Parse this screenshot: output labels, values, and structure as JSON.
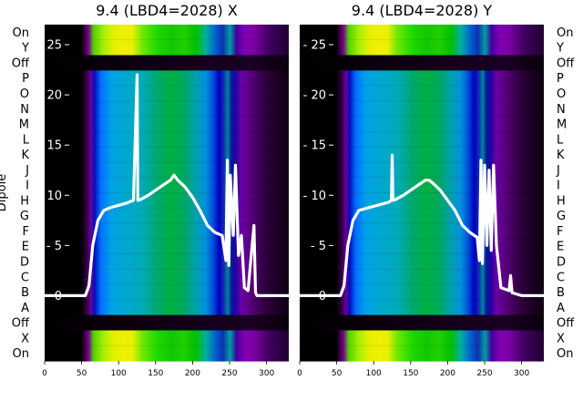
{
  "chart_data": [
    {
      "type": "heatmap",
      "title": "9.4 (LBD4=2028) X",
      "ylabel": "Dipole",
      "colormap": "nipy_spectral",
      "row_labels": [
        "On",
        "Y",
        "Off",
        "P",
        "O",
        "N",
        "M",
        "L",
        "K",
        "J",
        "I",
        "H",
        "G",
        "F",
        "E",
        "D",
        "C",
        "B",
        "A",
        "Off",
        "X",
        "On"
      ],
      "xlim": [
        0,
        330
      ],
      "x_ticks": [
        0,
        50,
        100,
        150,
        200,
        250,
        300
      ],
      "overlay_ylim": [
        -6.5,
        27
      ],
      "overlay_ticks": [
        0,
        5,
        10,
        15,
        20,
        25
      ],
      "overlay_line": {
        "color": "#ffffff",
        "x": [
          0,
          55,
          60,
          65,
          72,
          80,
          90,
          100,
          110,
          120,
          125,
          126,
          127,
          130,
          140,
          150,
          160,
          170,
          175,
          180,
          190,
          200,
          210,
          220,
          230,
          240,
          245,
          247,
          249,
          251,
          255,
          258,
          262,
          266,
          270,
          275,
          283,
          285,
          287,
          300,
          330
        ],
        "y": [
          0,
          0,
          1,
          5,
          7.5,
          8.5,
          8.8,
          9,
          9.2,
          9.5,
          22,
          9.5,
          9.5,
          9.6,
          10,
          10.5,
          11,
          11.5,
          12,
          11.5,
          10.8,
          9.8,
          8.5,
          7,
          6.3,
          6,
          3.5,
          13.5,
          3,
          12,
          6,
          13,
          4,
          6,
          0.8,
          0.5,
          7,
          0.3,
          0,
          0,
          0
        ]
      }
    },
    {
      "type": "heatmap",
      "title": "9.4 (LBD4=2028) Y",
      "colormap": "nipy_spectral",
      "row_labels": [
        "On",
        "Y",
        "Off",
        "P",
        "O",
        "N",
        "M",
        "L",
        "K",
        "J",
        "I",
        "H",
        "G",
        "F",
        "E",
        "D",
        "C",
        "B",
        "A",
        "Off",
        "X",
        "On"
      ],
      "xlim": [
        0,
        330
      ],
      "x_ticks": [
        0,
        50,
        100,
        150,
        200,
        250,
        300
      ],
      "overlay_ylim": [
        -6.5,
        27
      ],
      "overlay_ticks": [
        0,
        5,
        10,
        15,
        20,
        25
      ],
      "overlay_line": {
        "color": "#ffffff",
        "x": [
          0,
          55,
          60,
          65,
          72,
          80,
          90,
          100,
          110,
          120,
          124,
          125,
          126,
          130,
          140,
          150,
          160,
          170,
          175,
          180,
          190,
          200,
          210,
          220,
          230,
          240,
          243,
          245,
          247,
          250,
          253,
          256,
          259,
          262,
          266,
          272,
          283,
          285,
          287,
          300,
          330
        ],
        "y": [
          0,
          0,
          1,
          5,
          7.5,
          8.5,
          8.7,
          8.9,
          9.1,
          9.3,
          9.5,
          14,
          9.5,
          9.6,
          10,
          10.5,
          11,
          11.5,
          11.5,
          11.2,
          10.5,
          9.5,
          8.5,
          7,
          6.3,
          5.8,
          3.5,
          13.5,
          3.2,
          13,
          5,
          12.5,
          4.5,
          13,
          5,
          0.8,
          0.5,
          2,
          0.3,
          0,
          0
        ]
      }
    }
  ]
}
